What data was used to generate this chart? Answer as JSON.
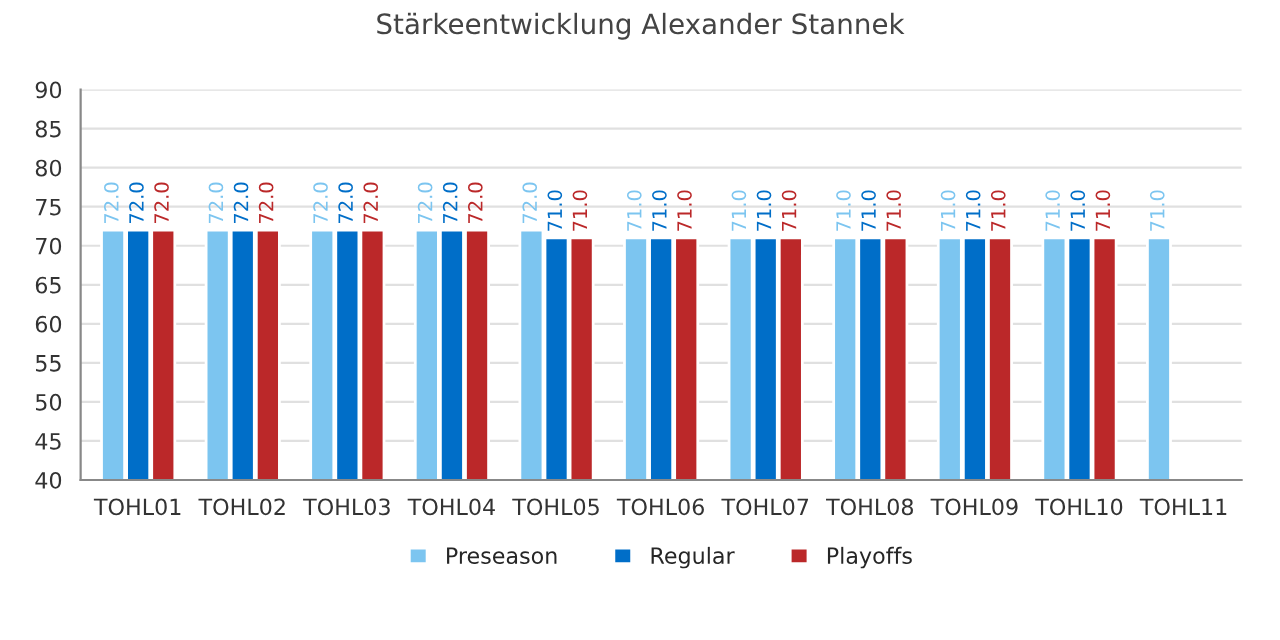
{
  "chart_data": {
    "type": "bar",
    "title": "Stärkeentwicklung Alexander Stannek",
    "categories": [
      "TOHL01",
      "TOHL02",
      "TOHL03",
      "TOHL04",
      "TOHL05",
      "TOHL06",
      "TOHL07",
      "TOHL08",
      "TOHL09",
      "TOHL10",
      "TOHL11"
    ],
    "series": [
      {
        "name": "Preseason",
        "color": "#7cc5f0",
        "values": [
          72,
          72,
          72,
          72,
          72,
          71,
          71,
          71,
          71,
          71,
          71
        ],
        "value_labels": [
          "72.0",
          "72.0",
          "72.0",
          "72.0",
          "72.0",
          "71.0",
          "71.0",
          "71.0",
          "71.0",
          "71.0",
          "71.0"
        ]
      },
      {
        "name": "Regular",
        "color": "#006ec8",
        "values": [
          72,
          72,
          72,
          72,
          71,
          71,
          71,
          71,
          71,
          71,
          null
        ],
        "value_labels": [
          "72.0",
          "72.0",
          "72.0",
          "72.0",
          "71.0",
          "71.0",
          "71.0",
          "71.0",
          "71.0",
          "71.0",
          null
        ]
      },
      {
        "name": "Playoffs",
        "color": "#bb2829",
        "values": [
          72,
          72,
          72,
          72,
          71,
          71,
          71,
          71,
          71,
          71,
          null
        ],
        "value_labels": [
          "72.0",
          "72.0",
          "72.0",
          "72.0",
          "71.0",
          "71.0",
          "71.0",
          "71.0",
          "71.0",
          "71.0",
          null
        ]
      }
    ],
    "ylim": [
      40,
      90
    ],
    "yticks": [
      40,
      45,
      50,
      55,
      60,
      65,
      70,
      75,
      80,
      85,
      90
    ],
    "grid": "y",
    "legend": "bottom"
  }
}
